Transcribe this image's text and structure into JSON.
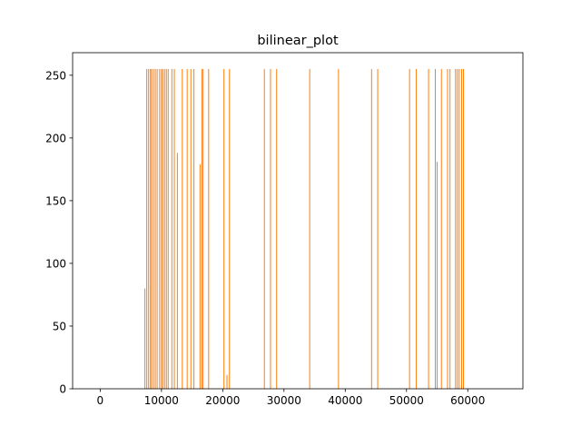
{
  "chart_data": {
    "type": "bar",
    "title": "bilinear_plot",
    "xlabel": "",
    "ylabel": "",
    "xlim": [
      -4500,
      69000
    ],
    "ylim": [
      0,
      268
    ],
    "xticks": [
      0,
      10000,
      20000,
      30000,
      40000,
      50000,
      60000
    ],
    "xtick_labels": [
      "0",
      "10000",
      "20000",
      "30000",
      "40000",
      "50000",
      "60000"
    ],
    "yticks": [
      0,
      50,
      100,
      150,
      200,
      250
    ],
    "ytick_labels": [
      "0",
      "50",
      "100",
      "150",
      "200",
      "250"
    ],
    "bar_color": "#ff7f0e",
    "grid": false,
    "x": [
      7300,
      7600,
      7900,
      8200,
      8400,
      8700,
      9000,
      9300,
      9700,
      10000,
      10200,
      10500,
      10800,
      11100,
      11700,
      12100,
      12600,
      13400,
      14200,
      14800,
      15300,
      16300,
      16600,
      16800,
      17700,
      20200,
      20700,
      21100,
      26800,
      27800,
      28800,
      34200,
      38900,
      44300,
      45300,
      50500,
      51600,
      53600,
      54700,
      55000,
      55700,
      56700,
      57100,
      58000,
      58300,
      58600,
      59000,
      59300
    ],
    "values": [
      80,
      255,
      255,
      255,
      255,
      255,
      255,
      255,
      255,
      255,
      255,
      255,
      255,
      255,
      255,
      255,
      188,
      255,
      255,
      255,
      255,
      179,
      255,
      255,
      255,
      255,
      11,
      255,
      255,
      255,
      255,
      255,
      255,
      255,
      255,
      255,
      255,
      255,
      255,
      181,
      255,
      255,
      255,
      255,
      255,
      255,
      255,
      255
    ]
  }
}
